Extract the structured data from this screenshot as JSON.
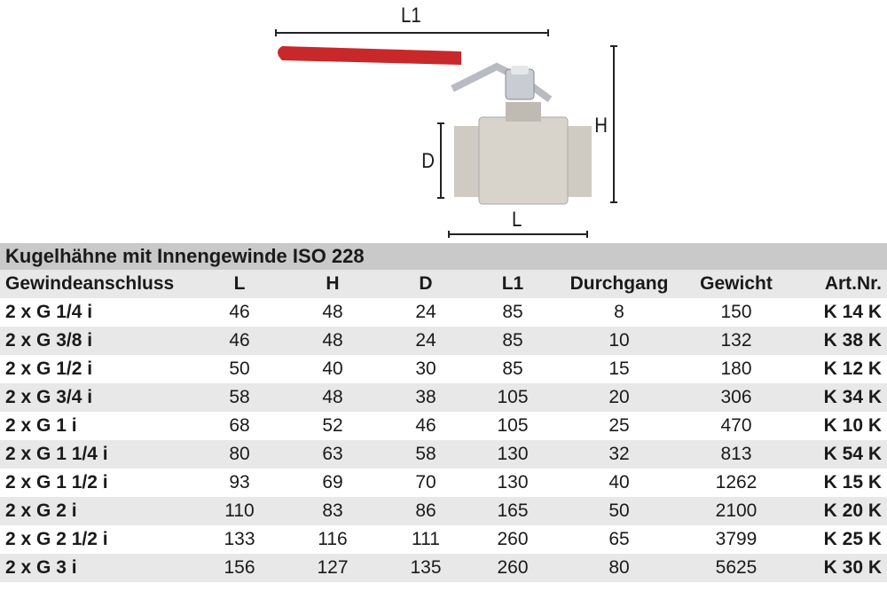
{
  "figure": {
    "labels": {
      "L1": "L1",
      "H": "H",
      "D": "D",
      "L": "L"
    },
    "handle_color": "#c8282a"
  },
  "table": {
    "title": "Kugelhähne mit Innengewinde ISO 228",
    "headers": [
      "Gewindeanschluss",
      "L",
      "H",
      "D",
      "L1",
      "Durchgang",
      "Gewicht",
      "Art.Nr."
    ],
    "rows": [
      [
        "2 x G 1/4 i",
        "46",
        "48",
        "24",
        "85",
        "8",
        "150",
        "K 14 K"
      ],
      [
        "2 x G 3/8 i",
        "46",
        "48",
        "24",
        "85",
        "10",
        "132",
        "K 38 K"
      ],
      [
        "2 x G 1/2 i",
        "50",
        "40",
        "30",
        "85",
        "15",
        "180",
        "K 12 K"
      ],
      [
        "2 x G 3/4 i",
        "58",
        "48",
        "38",
        "105",
        "20",
        "306",
        "K 34 K"
      ],
      [
        "2 x G 1 i",
        "68",
        "52",
        "46",
        "105",
        "25",
        "470",
        "K 10 K"
      ],
      [
        "2 x G 1 1/4 i",
        "80",
        "63",
        "58",
        "130",
        "32",
        "813",
        "K 54 K"
      ],
      [
        "2 x G 1 1/2 i",
        "93",
        "69",
        "70",
        "130",
        "40",
        "1262",
        "K 15 K"
      ],
      [
        "2 x G 2 i",
        "110",
        "83",
        "86",
        "165",
        "50",
        "2100",
        "K 20 K"
      ],
      [
        "2 x G 2 1/2 i",
        "133",
        "116",
        "111",
        "260",
        "65",
        "3799",
        "K 25 K"
      ],
      [
        "2 x G 3 i",
        "156",
        "127",
        "135",
        "260",
        "80",
        "5625",
        "K 30 K"
      ]
    ]
  }
}
